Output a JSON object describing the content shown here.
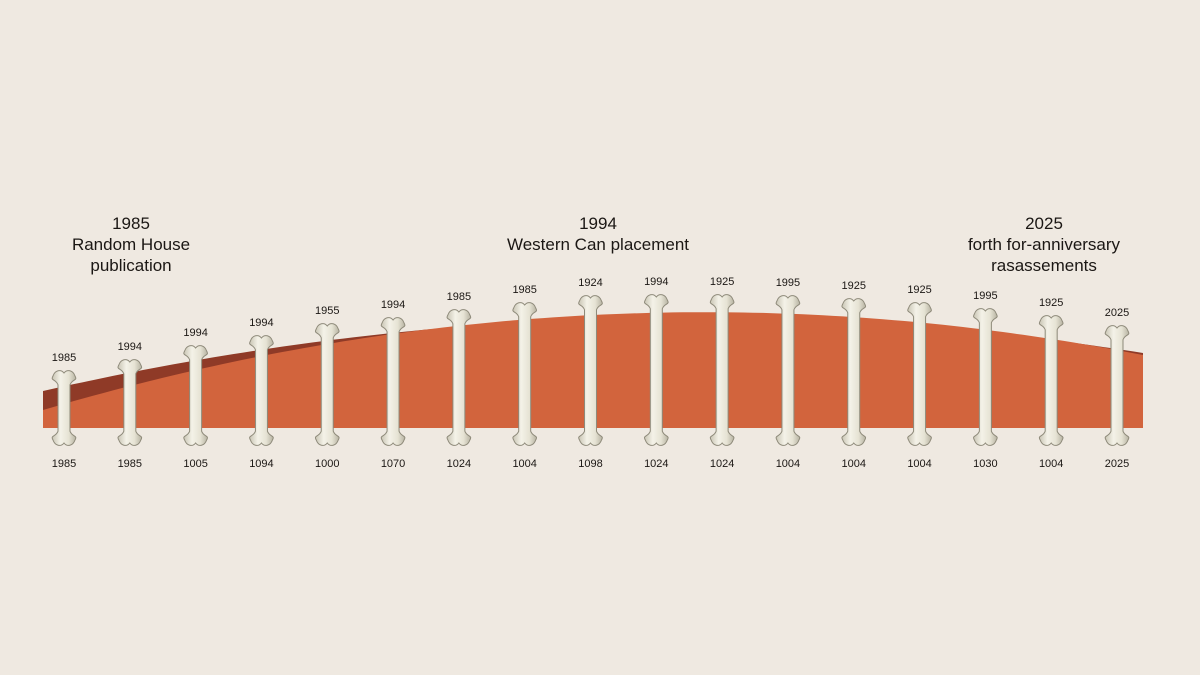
{
  "milestones": [
    {
      "year": "1985",
      "lines": [
        "Random House",
        "publication"
      ]
    },
    {
      "year": "1994",
      "lines": [
        "Western Can placement"
      ]
    },
    {
      "year": "2025",
      "lines": [
        "forth for-anniversary",
        "rasassements"
      ]
    }
  ],
  "bones": [
    {
      "top": "1985",
      "bottom": "1985"
    },
    {
      "top": "1994",
      "bottom": "1985"
    },
    {
      "top": "1994",
      "bottom": "1005"
    },
    {
      "top": "1994",
      "bottom": "1094"
    },
    {
      "top": "1955",
      "bottom": "1000"
    },
    {
      "top": "1994",
      "bottom": "1070"
    },
    {
      "top": "1985",
      "bottom": "1024"
    },
    {
      "top": "1985",
      "bottom": "1004"
    },
    {
      "top": "1924",
      "bottom": "1098"
    },
    {
      "top": "1994",
      "bottom": "1024"
    },
    {
      "top": "1925",
      "bottom": "1024"
    },
    {
      "top": "1995",
      "bottom": "1004"
    },
    {
      "top": "1925",
      "bottom": "1004"
    },
    {
      "top": "1925",
      "bottom": "1004"
    },
    {
      "top": "1995",
      "bottom": "1030"
    },
    {
      "top": "1925",
      "bottom": "1004"
    },
    {
      "top": "2025",
      "bottom": "2025"
    }
  ],
  "colors": {
    "background": "#efe9e1",
    "band_dark": "#8f3a27",
    "band_light": "#d2643d",
    "bone_fill": "#ece9dc",
    "bone_stroke": "#8e8a7a",
    "text": "#1b1714"
  }
}
